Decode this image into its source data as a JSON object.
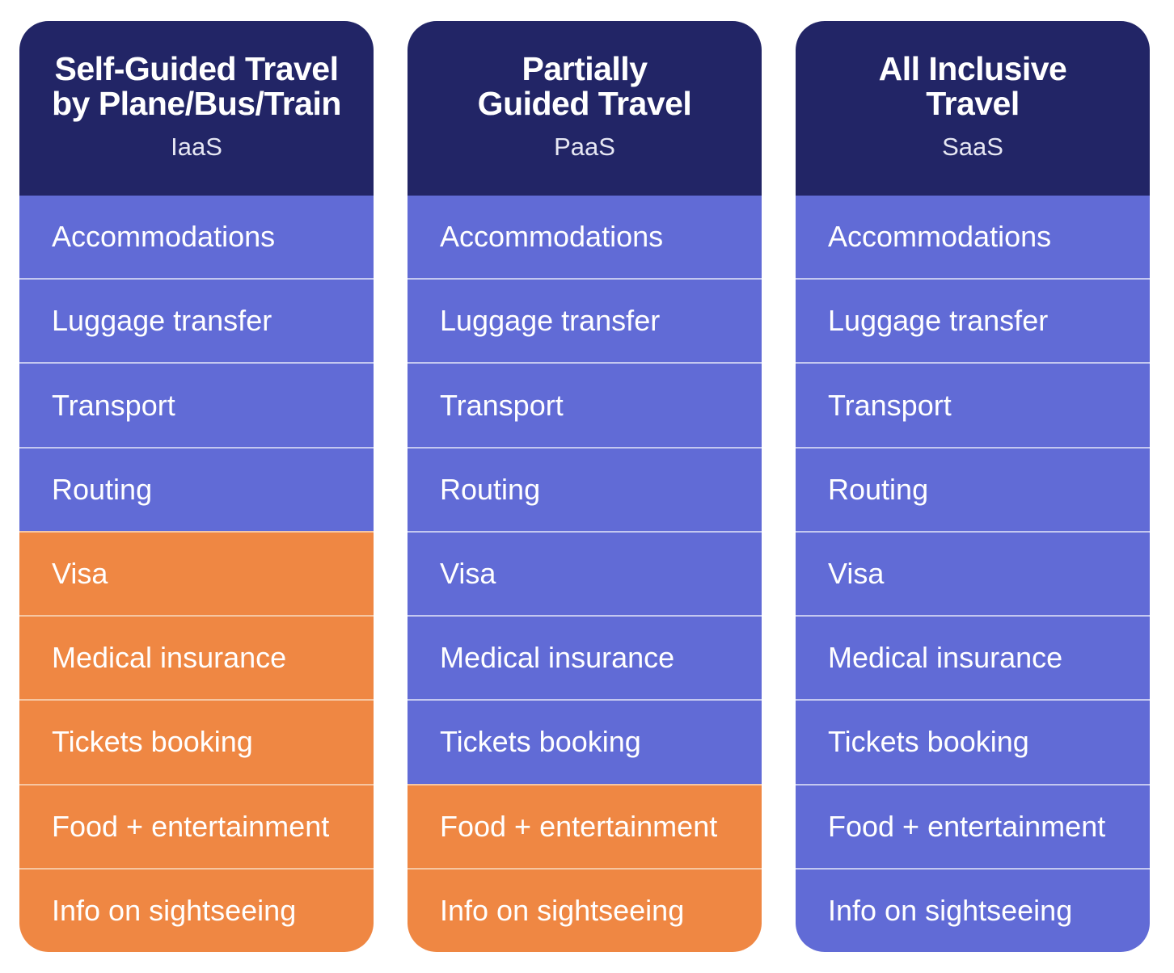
{
  "colors": {
    "header": "#222566",
    "provided": "#616bd6",
    "self_managed": "#ef8743"
  },
  "columns": [
    {
      "title_lines": [
        "Self-Guided Travel",
        "by Plane/Bus/Train"
      ],
      "subtitle": "IaaS",
      "rows": [
        {
          "label": "Accommodations",
          "status": "provided"
        },
        {
          "label": "Luggage transfer",
          "status": "provided"
        },
        {
          "label": "Transport",
          "status": "provided"
        },
        {
          "label": "Routing",
          "status": "provided"
        },
        {
          "label": "Visa",
          "status": "self"
        },
        {
          "label": "Medical insurance",
          "status": "self"
        },
        {
          "label": "Tickets booking",
          "status": "self"
        },
        {
          "label": "Food + entertainment",
          "status": "self"
        },
        {
          "label": "Info on sightseeing",
          "status": "self"
        }
      ]
    },
    {
      "title_lines": [
        "Partially",
        "Guided Travel"
      ],
      "subtitle": "PaaS",
      "rows": [
        {
          "label": "Accommodations",
          "status": "provided"
        },
        {
          "label": "Luggage transfer",
          "status": "provided"
        },
        {
          "label": "Transport",
          "status": "provided"
        },
        {
          "label": "Routing",
          "status": "provided"
        },
        {
          "label": "Visa",
          "status": "provided"
        },
        {
          "label": "Medical insurance",
          "status": "provided"
        },
        {
          "label": "Tickets booking",
          "status": "provided"
        },
        {
          "label": "Food + entertainment",
          "status": "self"
        },
        {
          "label": "Info on sightseeing",
          "status": "self"
        }
      ]
    },
    {
      "title_lines": [
        "All Inclusive",
        "Travel"
      ],
      "subtitle": "SaaS",
      "rows": [
        {
          "label": "Accommodations",
          "status": "provided"
        },
        {
          "label": "Luggage transfer",
          "status": "provided"
        },
        {
          "label": "Transport",
          "status": "provided"
        },
        {
          "label": "Routing",
          "status": "provided"
        },
        {
          "label": "Visa",
          "status": "provided"
        },
        {
          "label": "Medical insurance",
          "status": "provided"
        },
        {
          "label": "Tickets booking",
          "status": "provided"
        },
        {
          "label": "Food + entertainment",
          "status": "provided"
        },
        {
          "label": "Info on sightseeing",
          "status": "provided"
        }
      ]
    }
  ]
}
